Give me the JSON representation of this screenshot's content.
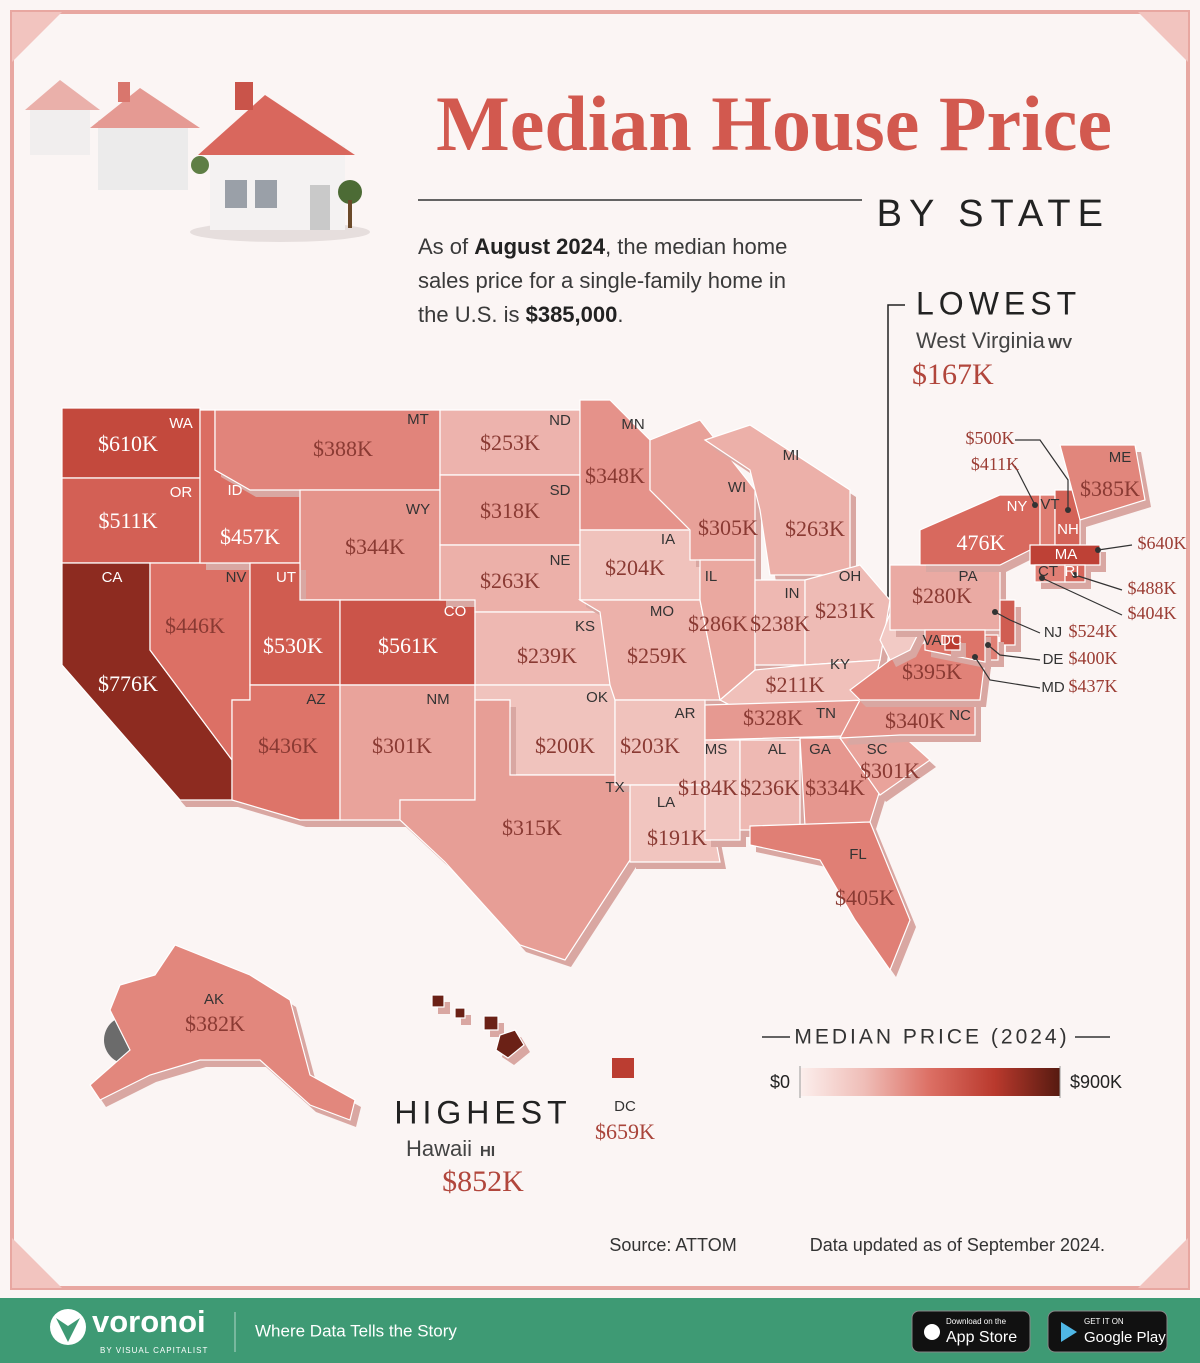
{
  "header": {
    "title": "Median House Price",
    "subtitle": "BY STATE",
    "intro": [
      "As of ",
      "August 2024",
      ", the median home sales price for a single-family home in the U.S. is ",
      "$385,000",
      "."
    ]
  },
  "states": [
    {
      "abbr": "WA",
      "value": 610000,
      "label": "$610K"
    },
    {
      "abbr": "OR",
      "value": 511000,
      "label": "$511K"
    },
    {
      "abbr": "CA",
      "value": 776000,
      "label": "$776K"
    },
    {
      "abbr": "NV",
      "value": 446000,
      "label": "$446K"
    },
    {
      "abbr": "ID",
      "value": 457000,
      "label": "$457K"
    },
    {
      "abbr": "MT",
      "value": 388000,
      "label": "$388K"
    },
    {
      "abbr": "WY",
      "value": 344000,
      "label": "$344K"
    },
    {
      "abbr": "UT",
      "value": 530000,
      "label": "$530K"
    },
    {
      "abbr": "CO",
      "value": 561000,
      "label": "$561K"
    },
    {
      "abbr": "AZ",
      "value": 436000,
      "label": "$436K"
    },
    {
      "abbr": "NM",
      "value": 301000,
      "label": "$301K"
    },
    {
      "abbr": "ND",
      "value": 253000,
      "label": "$253K"
    },
    {
      "abbr": "SD",
      "value": 318000,
      "label": "$318K"
    },
    {
      "abbr": "NE",
      "value": 263000,
      "label": "$263K"
    },
    {
      "abbr": "KS",
      "value": 239000,
      "label": "$239K"
    },
    {
      "abbr": "OK",
      "value": 200000,
      "label": "$200K"
    },
    {
      "abbr": "TX",
      "value": 315000,
      "label": "$315K"
    },
    {
      "abbr": "MN",
      "value": 348000,
      "label": "$348K"
    },
    {
      "abbr": "IA",
      "value": 204000,
      "label": "$204K"
    },
    {
      "abbr": "MO",
      "value": 259000,
      "label": "$259K"
    },
    {
      "abbr": "AR",
      "value": 203000,
      "label": "$203K"
    },
    {
      "abbr": "LA",
      "value": 191000,
      "label": "$191K"
    },
    {
      "abbr": "WI",
      "value": 305000,
      "label": "$305K"
    },
    {
      "abbr": "IL",
      "value": 286000,
      "label": "$286K"
    },
    {
      "abbr": "MI",
      "value": 263000,
      "label": "$263K"
    },
    {
      "abbr": "IN",
      "value": 238000,
      "label": "$238K"
    },
    {
      "abbr": "OH",
      "value": 231000,
      "label": "$231K"
    },
    {
      "abbr": "KY",
      "value": 211000,
      "label": "$211K"
    },
    {
      "abbr": "TN",
      "value": 328000,
      "label": "$328K"
    },
    {
      "abbr": "MS",
      "value": 184000,
      "label": "$184K"
    },
    {
      "abbr": "AL",
      "value": 236000,
      "label": "$236K"
    },
    {
      "abbr": "GA",
      "value": 334000,
      "label": "$334K"
    },
    {
      "abbr": "SC",
      "value": 301000,
      "label": "$301K"
    },
    {
      "abbr": "NC",
      "value": 340000,
      "label": "$340K"
    },
    {
      "abbr": "FL",
      "value": 405000,
      "label": "$405K"
    },
    {
      "abbr": "VA",
      "value": 395000,
      "label": "$395K"
    },
    {
      "abbr": "WV",
      "value": 167000,
      "label": "$167K"
    },
    {
      "abbr": "PA",
      "value": 280000,
      "label": "$280K"
    },
    {
      "abbr": "NY",
      "value": 476000,
      "label": "476K"
    },
    {
      "abbr": "VT",
      "value": 411000,
      "label": "$411K"
    },
    {
      "abbr": "NH",
      "value": 500000,
      "label": "$500K"
    },
    {
      "abbr": "ME",
      "value": 385000,
      "label": "$385K"
    },
    {
      "abbr": "MA",
      "value": 640000,
      "label": "$640K"
    },
    {
      "abbr": "CT",
      "value": 404000,
      "label": "$404K"
    },
    {
      "abbr": "RI",
      "value": 488000,
      "label": "$488K"
    },
    {
      "abbr": "NJ",
      "value": 524000,
      "label": "$524K"
    },
    {
      "abbr": "DE",
      "value": 400000,
      "label": "$400K"
    },
    {
      "abbr": "MD",
      "value": 437000,
      "label": "$437K"
    },
    {
      "abbr": "DC",
      "value": 659000,
      "label": "$659K"
    },
    {
      "abbr": "AK",
      "value": 382000,
      "label": "$382K"
    },
    {
      "abbr": "HI",
      "value": 852000,
      "label": "$852K"
    }
  ],
  "lowest": {
    "heading": "LOWEST",
    "name": "West Virginia"
  },
  "highest": {
    "heading": "HIGHEST",
    "name": "Hawaii"
  },
  "legend": {
    "title": "MEDIAN PRICE (2024)",
    "min": {
      "value": 0,
      "label": "$0"
    },
    "max": {
      "value": 900000,
      "label": "$900K"
    },
    "colors": [
      "#fcefed",
      "#efbdb7",
      "#dc6f64",
      "#b9392d",
      "#561a10"
    ]
  },
  "source": "Source: ATTOM",
  "note": "Data updated as of September 2024.",
  "footer": {
    "brand": "voronoi",
    "brand_sub": "BY VISUAL CAPITALIST",
    "tagline": "Where Data Tells the Story",
    "app_store": [
      "Download on the",
      "App Store"
    ],
    "google_play": [
      "GET IT ON",
      "Google Play"
    ]
  }
}
